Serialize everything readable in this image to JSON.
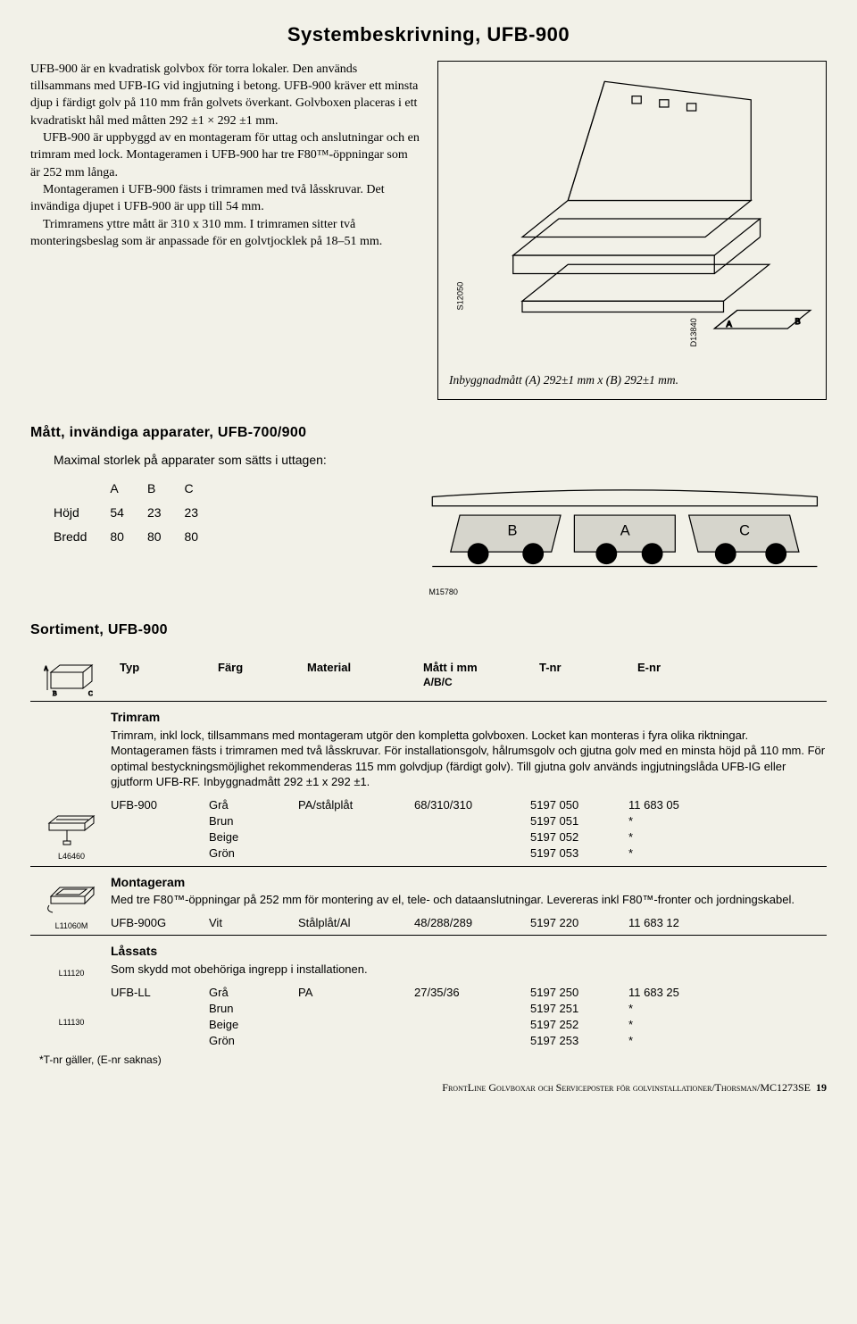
{
  "title": "Systembeskrivning, UFB-900",
  "body": {
    "p1": "UFB-900 är en kvadratisk golvbox för torra lokaler. Den används tillsammans med UFB-IG vid ingjutning i betong. UFB-900 kräver ett minsta djup i färdigt golv på 110 mm från golvets överkant. Golvboxen placeras i ett kvadratiskt hål med måtten 292 ±1 × 292 ±1 mm.",
    "p2": "UFB-900 är uppbyggd av en montageram för uttag och anslutningar och en trimram med lock. Montageramen i UFB-900 har tre F80™-öppningar som är 252 mm långa.",
    "p3": "Montageramen i UFB-900 fästs i trimramen med två låsskruvar. Det invändiga djupet i UFB-900 är upp till 54 mm.",
    "p4": "Trimramens yttre mått är 310 x 310 mm. I trimramen sitter två monteringsbeslag som är anpassade för en golvtjocklek på 18–51 mm."
  },
  "figure": {
    "code1": "S12050",
    "code2": "D13840",
    "caption": "Inbyggnadmått (A) 292±1 mm x (B) 292±1 mm."
  },
  "matt": {
    "heading": "Mått, invändiga apparater, UFB-700/900",
    "intro": "Maximal storlek på apparater som sätts i uttagen:",
    "cols": [
      "A",
      "B",
      "C"
    ],
    "rows": [
      {
        "label": "Höjd",
        "a": "54",
        "b": "23",
        "c": "23"
      },
      {
        "label": "Bredd",
        "a": "80",
        "b": "80",
        "c": "80"
      }
    ],
    "diagram_code": "M15780",
    "diagram_labels": {
      "a": "A",
      "b": "B",
      "c": "C"
    }
  },
  "sortiment": {
    "heading": "Sortiment, UFB-900",
    "columns": {
      "typ": "Typ",
      "farg": "Färg",
      "material": "Material",
      "matt": "Mått i mm",
      "matt_sub": "A/B/C",
      "tnr": "T-nr",
      "enr": "E-nr"
    },
    "sections": [
      {
        "title": "Trimram",
        "desc": "Trimram, inkl lock, tillsammans med montageram utgör den kompletta golvboxen. Locket kan monteras i fyra olika riktningar. Montageramen fästs i trimramen med två låsskruvar. För installationsgolv, hålrumsgolv och gjutna golv med en minsta höjd på 110 mm. För optimal bestyckningsmöjlighet rekommenderas 115 mm golvdjup (färdigt golv). Till gjutna golv används ingjutningslåda UFB-IG eller gjutform UFB-RF. Inbyggnadmått 292 ±1 x 292 ±1.",
        "icon_code": "L46460",
        "rows": [
          {
            "typ": "UFB-900",
            "farg": "Grå",
            "material": "PA/stålplåt",
            "matt": "68/310/310",
            "tnr": "5197 050",
            "enr": "11 683 05"
          },
          {
            "typ": "",
            "farg": "Brun",
            "material": "",
            "matt": "",
            "tnr": "5197 051",
            "enr": "*"
          },
          {
            "typ": "",
            "farg": "Beige",
            "material": "",
            "matt": "",
            "tnr": "5197 052",
            "enr": "*"
          },
          {
            "typ": "",
            "farg": "Grön",
            "material": "",
            "matt": "",
            "tnr": "5197 053",
            "enr": "*"
          }
        ]
      },
      {
        "title": "Montageram",
        "desc": "Med tre F80™-öppningar på 252 mm för montering av el, tele- och dataanslutningar. Levereras inkl F80™-fronter och jordningskabel.",
        "icon_code": "L11060M",
        "rows": [
          {
            "typ": "UFB-900G",
            "farg": "Vit",
            "material": "Stålplåt/Al",
            "matt": "48/288/289",
            "tnr": "5197 220",
            "enr": "11 683 12"
          }
        ]
      },
      {
        "title": "Låssats",
        "desc": "Som skydd mot obehöriga ingrepp i installationen.",
        "icon_code": "L11120",
        "icon_code2": "L11130",
        "rows": [
          {
            "typ": "UFB-LL",
            "farg": "Grå",
            "material": "PA",
            "matt": "27/35/36",
            "tnr": "5197 250",
            "enr": "11 683 25"
          },
          {
            "typ": "",
            "farg": "Brun",
            "material": "",
            "matt": "",
            "tnr": "5197 251",
            "enr": "*"
          },
          {
            "typ": "",
            "farg": "Beige",
            "material": "",
            "matt": "",
            "tnr": "5197 252",
            "enr": "*"
          },
          {
            "typ": "",
            "farg": "Grön",
            "material": "",
            "matt": "",
            "tnr": "5197 253",
            "enr": "*"
          }
        ]
      }
    ],
    "footnote": "*T-nr gäller, (E-nr saknas)"
  },
  "pagefoot": {
    "text": "FrontLine Golvboxar och Serviceposter för golvinstallationer/Thorsman/MC1273SE",
    "pagenum": "19"
  }
}
